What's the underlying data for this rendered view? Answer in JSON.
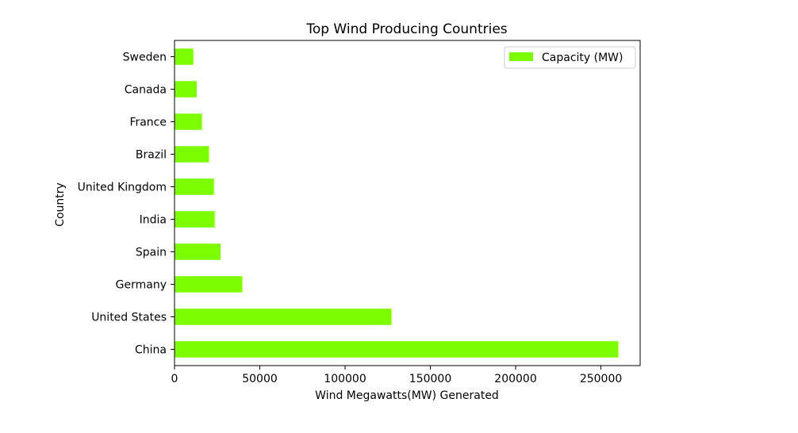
{
  "chart_data": {
    "type": "bar",
    "orientation": "horizontal",
    "title": "Top Wind Producing Countries",
    "xlabel": "Wind Megawatts(MW) Generated",
    "ylabel": "Country",
    "categories": [
      "China",
      "United States",
      "Germany",
      "Spain",
      "India",
      "United Kingdom",
      "Brazil",
      "France",
      "Canada",
      "Sweden"
    ],
    "series": [
      {
        "name": "Capacity (MW)",
        "color": "#7cfc00",
        "values": [
          260000,
          127000,
          39500,
          27000,
          23500,
          23000,
          20000,
          16000,
          13000,
          11000
        ]
      }
    ],
    "xlim": [
      0,
      273000
    ],
    "xticks": [
      0,
      50000,
      100000,
      150000,
      200000,
      250000
    ],
    "xtick_labels": [
      "0",
      "50000",
      "100000",
      "150000",
      "200000",
      "250000"
    ],
    "grid": false,
    "legend_position": "top-right"
  }
}
